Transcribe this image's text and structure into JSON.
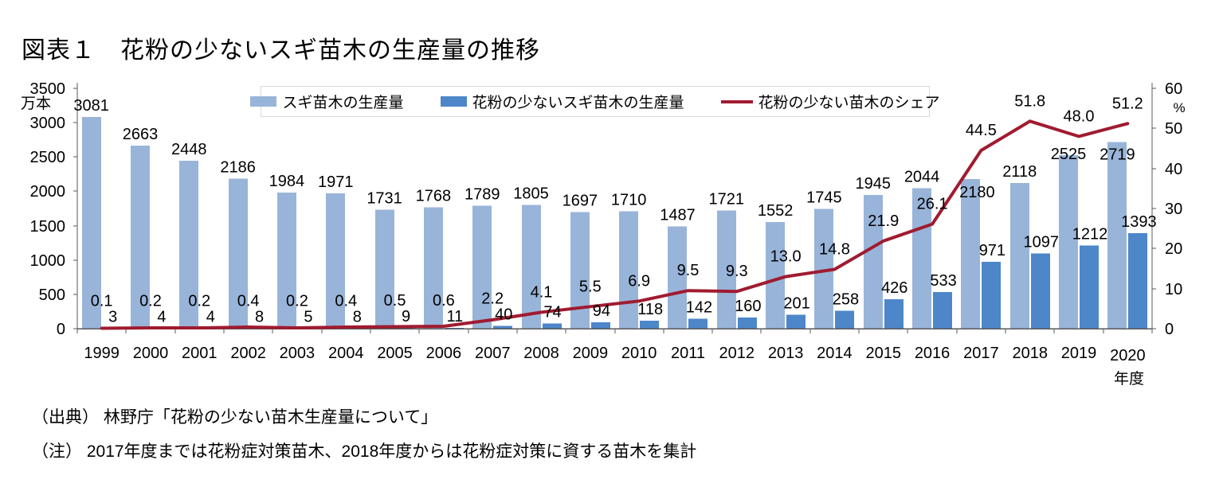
{
  "page": {
    "title": "図表１　花粉の少ないスギ苗木の生産量の推移",
    "source_note": "（出典） 林野庁「花粉の少ない苗木生産量について」",
    "footnote": "（注） 2017年度までは花粉症対策苗木、2018年度からは花粉症対策に資する苗木を集計"
  },
  "chart_data": {
    "type": "combo",
    "title": "図表１　花粉の少ないスギ苗木の生産量の推移",
    "categories": [
      1999,
      2000,
      2001,
      2002,
      2003,
      2004,
      2005,
      2006,
      2007,
      2008,
      2009,
      2010,
      2011,
      2012,
      2013,
      2014,
      2015,
      2016,
      2017,
      2018,
      2019,
      2020
    ],
    "series": [
      {
        "name": "スギ苗木の生産量",
        "type": "bar",
        "axis": "left",
        "color": "#99B4D9",
        "values": [
          3081,
          2663,
          2448,
          2186,
          1984,
          1971,
          1731,
          1768,
          1789,
          1805,
          1697,
          1710,
          1487,
          1721,
          1552,
          1745,
          1945,
          2044,
          2180,
          2118,
          2525,
          2719
        ]
      },
      {
        "name": "花粉の少ないスギ苗木の生産量",
        "type": "bar",
        "axis": "left",
        "color": "#4D86C9",
        "values": [
          3,
          4,
          4,
          8,
          5,
          8,
          9,
          11,
          40,
          74,
          94,
          118,
          142,
          160,
          201,
          258,
          426,
          533,
          971,
          1097,
          1212,
          1393
        ]
      },
      {
        "name": "花粉の少ない苗木のシェア",
        "type": "line",
        "axis": "right",
        "color": "#A01B30",
        "values": [
          0.1,
          0.2,
          0.2,
          0.4,
          0.2,
          0.4,
          0.5,
          0.6,
          2.2,
          4.1,
          5.5,
          6.9,
          9.5,
          9.3,
          13.0,
          14.8,
          21.9,
          26.1,
          44.5,
          51.8,
          48.0,
          51.2
        ]
      }
    ],
    "left_axis": {
      "unit": "万本",
      "min": 0,
      "max": 3500,
      "ticks": [
        0,
        500,
        1000,
        1500,
        2000,
        2500,
        3000,
        3500
      ]
    },
    "right_axis": {
      "unit": "%",
      "min": 0,
      "max": 60,
      "ticks": [
        0,
        10,
        20,
        30,
        40,
        50,
        60
      ]
    },
    "x_axis": {
      "unit": "年度"
    },
    "legend_position": "top",
    "gridlines": false,
    "layout_hints": {
      "light_label_offsets": {
        "2017": [
          8,
          31
        ],
        "2019": [
          0,
          13
        ],
        "2020": [
          0,
          30
        ]
      }
    }
  }
}
